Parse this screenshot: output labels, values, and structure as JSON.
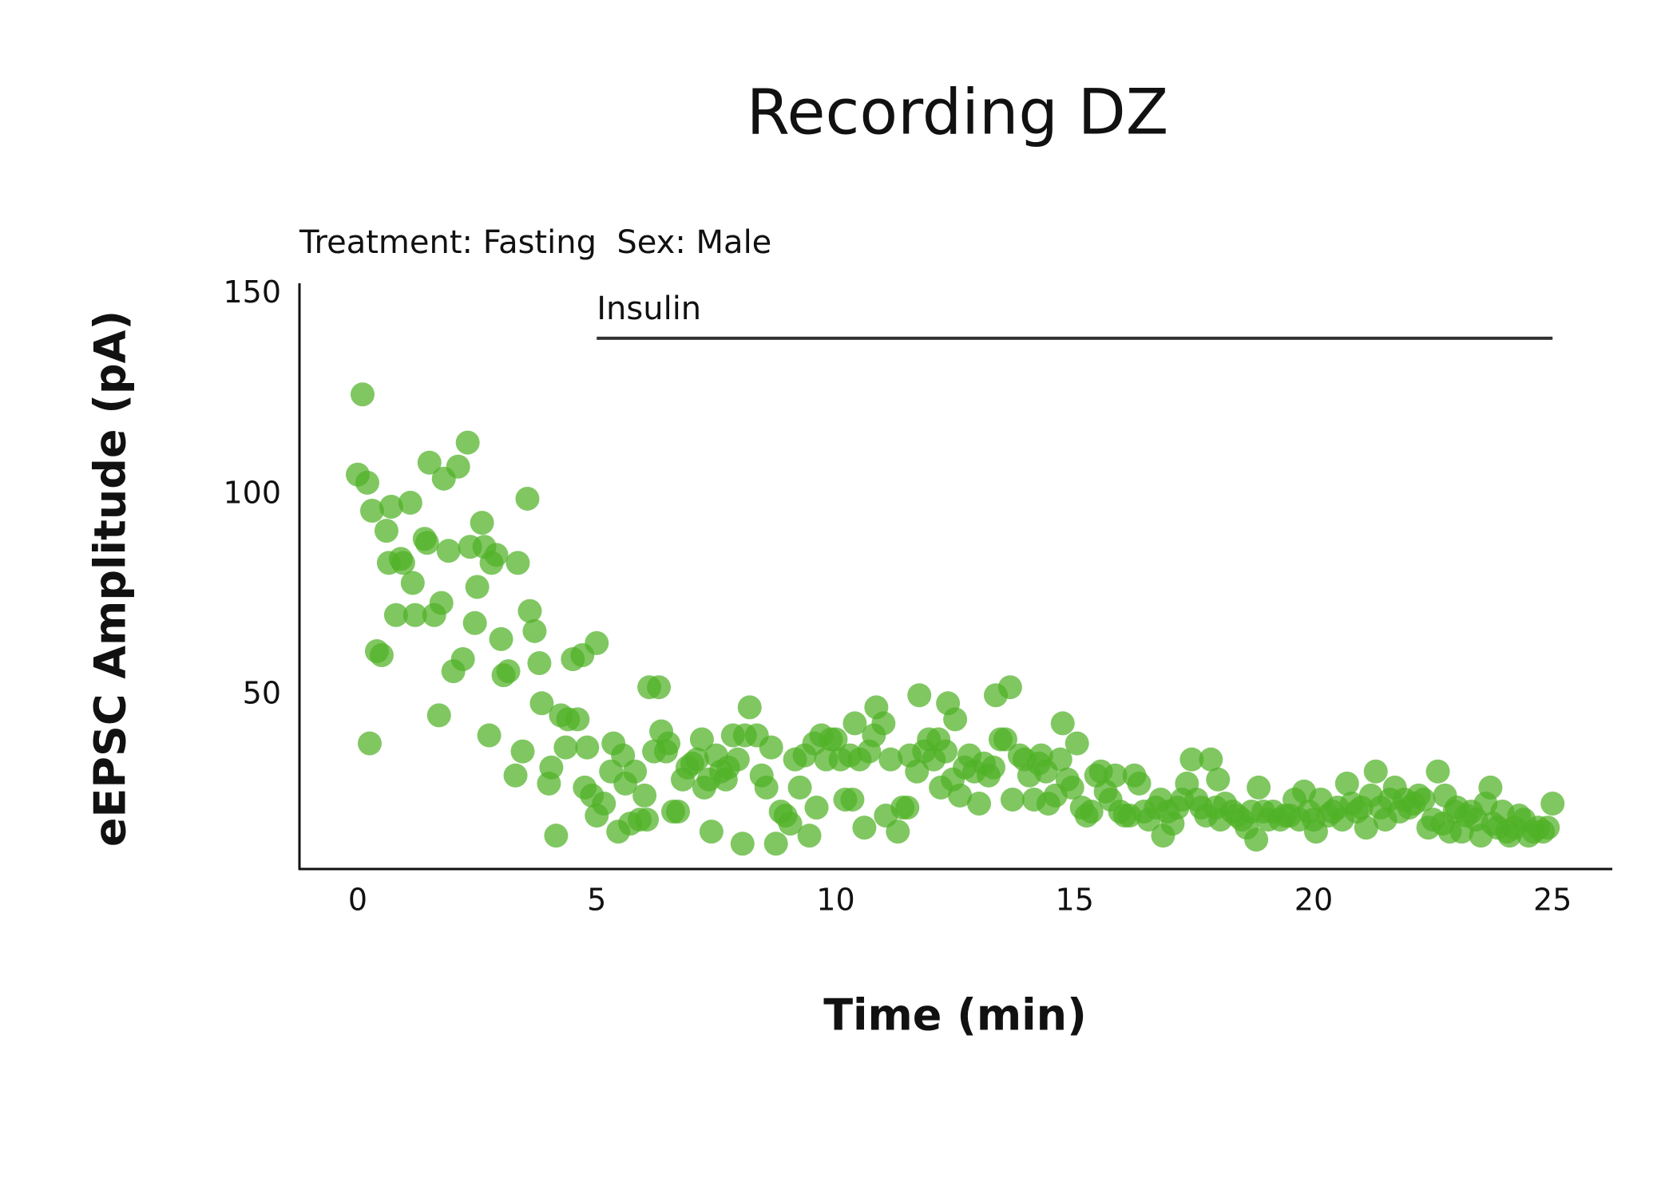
{
  "chart_data": {
    "type": "scatter",
    "title": "Recording DZ",
    "subtitle": "Treatment: Fasting  Sex: Male",
    "x_label": "Time (min)",
    "y_label": "eEPSC Amplitude (pA)",
    "annotations": [
      {
        "text": "Insulin",
        "x_start": 5,
        "x_end": 25,
        "y": 139
      }
    ],
    "xlim": [
      -1.22,
      26.25
    ],
    "ylim": [
      6.6,
      150
    ],
    "xticks": [
      0,
      5,
      10,
      15,
      20,
      25
    ],
    "yticks": [
      50,
      100,
      150
    ],
    "grid": false,
    "series": [
      {
        "color": "#4fb125",
        "x": [
          0,
          0.1,
          0.2,
          0.25,
          0.3,
          0.4,
          0.5,
          0.6,
          0.65,
          0.7,
          0.8,
          0.9,
          0.95,
          1.1,
          1.15,
          1.2,
          1.4,
          1.45,
          1.5,
          1.6,
          1.7,
          1.75,
          1.8,
          1.9,
          2.0,
          2.1,
          2.2,
          2.3,
          2.35,
          2.45,
          2.5,
          2.6,
          2.65,
          2.75,
          2.8,
          2.9,
          3.0,
          3.05,
          3.15,
          3.3,
          3.35,
          3.45,
          3.55,
          3.6,
          3.7,
          3.8,
          3.85,
          4.0,
          4.05,
          4.15,
          4.25,
          4.35,
          4.4,
          4.5,
          4.6,
          4.7,
          4.75,
          4.8,
          4.9,
          5.0,
          5.0,
          5.15,
          5.3,
          5.35,
          5.45,
          5.55,
          5.6,
          5.7,
          5.8,
          5.9,
          6.0,
          6.05,
          6.1,
          6.2,
          6.3,
          6.35,
          6.45,
          6.5,
          6.6,
          6.7,
          6.8,
          6.9,
          7.0,
          7.1,
          7.2,
          7.25,
          7.35,
          7.4,
          7.5,
          7.6,
          7.7,
          7.75,
          7.85,
          7.95,
          8.05,
          8.1,
          8.2,
          8.35,
          8.45,
          8.55,
          8.65,
          8.75,
          8.85,
          8.95,
          9.05,
          9.15,
          9.25,
          9.35,
          9.45,
          9.55,
          9.6,
          9.7,
          9.8,
          9.9,
          10.0,
          10.1,
          10.2,
          10.3,
          10.35,
          10.4,
          10.5,
          10.6,
          10.7,
          10.8,
          10.85,
          11.0,
          11.05,
          11.15,
          11.3,
          11.4,
          11.5,
          11.55,
          11.7,
          11.75,
          11.85,
          11.95,
          12.05,
          12.15,
          12.2,
          12.3,
          12.35,
          12.45,
          12.5,
          12.6,
          12.7,
          12.8,
          12.9,
          13.0,
          13.1,
          13.2,
          13.3,
          13.35,
          13.45,
          13.55,
          13.65,
          13.7,
          13.85,
          13.95,
          14.05,
          14.15,
          14.25,
          14.3,
          14.4,
          14.45,
          14.6,
          14.7,
          14.75,
          14.85,
          14.95,
          15.05,
          15.15,
          15.25,
          15.35,
          15.45,
          15.55,
          15.65,
          15.75,
          15.85,
          15.95,
          16.05,
          16.15,
          16.25,
          16.35,
          16.45,
          16.55,
          16.7,
          16.8,
          16.85,
          16.95,
          17.05,
          17.15,
          17.25,
          17.35,
          17.45,
          17.55,
          17.65,
          17.75,
          17.85,
          17.95,
          18.0,
          18.05,
          18.15,
          18.3,
          18.4,
          18.5,
          18.6,
          18.7,
          18.8,
          18.85,
          18.95,
          19.05,
          19.15,
          19.3,
          19.4,
          19.5,
          19.6,
          19.7,
          19.8,
          19.9,
          20.0,
          20.05,
          20.15,
          20.3,
          20.4,
          20.5,
          20.6,
          20.7,
          20.8,
          20.9,
          21.0,
          21.1,
          21.2,
          21.3,
          21.4,
          21.5,
          21.6,
          21.7,
          21.8,
          21.9,
          22.0,
          22.1,
          22.2,
          22.3,
          22.4,
          22.5,
          22.6,
          22.7,
          22.75,
          22.85,
          22.95,
          23.0,
          23.1,
          23.2,
          23.3,
          23.4,
          23.5,
          23.6,
          23.7,
          23.75,
          23.85,
          23.95,
          24.05,
          24.1,
          24.2,
          24.3,
          24.4,
          24.5,
          24.6,
          24.7,
          24.8,
          24.9,
          25.0
        ],
        "values": [
          105,
          125,
          103,
          38,
          96,
          61,
          60,
          91,
          83,
          97,
          70,
          84,
          83,
          98,
          78,
          70,
          89,
          88,
          108,
          70,
          45,
          73,
          104,
          86,
          56,
          107,
          59,
          113,
          87,
          68,
          77,
          93,
          87,
          40,
          83,
          85,
          64,
          55,
          56,
          30,
          83,
          36,
          99,
          71,
          66,
          58,
          48,
          28,
          32,
          15,
          45,
          37,
          44,
          59,
          44,
          60,
          27,
          37,
          25,
          63,
          20,
          23,
          31,
          38,
          16,
          35,
          28,
          18,
          31,
          19,
          25,
          19,
          52,
          36,
          52,
          41,
          36,
          38,
          21,
          21,
          29,
          32,
          33,
          34,
          39,
          27,
          29,
          16,
          35,
          31,
          29,
          32,
          40,
          34,
          13,
          40,
          47,
          40,
          30,
          27,
          37,
          13,
          21,
          20,
          18,
          34,
          27,
          35,
          15,
          38,
          22,
          40,
          34,
          39,
          39,
          34,
          24,
          35,
          24,
          43,
          34,
          17,
          36,
          40,
          47,
          43,
          20,
          34,
          16,
          22,
          22,
          35,
          31,
          50,
          36,
          39,
          34,
          39,
          27,
          36,
          48,
          29,
          44,
          25,
          32,
          35,
          31,
          23,
          33,
          30,
          32,
          50,
          39,
          39,
          52,
          24,
          35,
          34,
          30,
          24,
          33,
          35,
          31,
          23,
          25,
          34,
          43,
          29,
          27,
          38,
          22,
          20,
          21,
          30,
          31,
          26,
          24,
          30,
          21,
          20,
          20,
          30,
          28,
          21,
          19,
          22,
          24,
          15,
          21,
          18,
          22,
          24,
          28,
          34,
          24,
          22,
          20,
          34,
          22,
          29,
          19,
          23,
          21,
          20,
          19,
          17,
          21,
          14,
          27,
          21,
          19,
          21,
          19,
          20,
          20,
          24,
          19,
          26,
          21,
          19,
          16,
          24,
          20,
          21,
          22,
          19,
          28,
          23,
          21,
          22,
          17,
          25,
          31,
          22,
          19,
          24,
          27,
          21,
          24,
          22,
          23,
          25,
          24,
          17,
          19,
          31,
          18,
          25,
          16,
          21,
          22,
          16,
          20,
          21,
          19,
          15,
          23,
          27,
          18,
          17,
          21,
          16,
          15,
          17,
          20,
          19,
          15,
          16,
          17,
          16,
          17,
          23
        ]
      }
    ]
  }
}
